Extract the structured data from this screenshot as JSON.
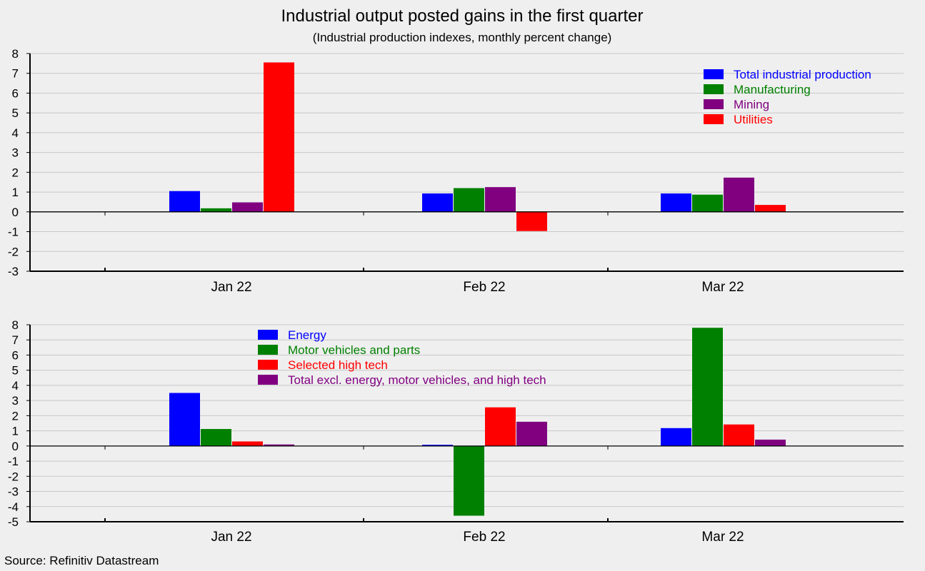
{
  "header": {
    "title": "Industrial output posted gains in the first quarter",
    "subtitle": "(Industrial production indexes, monthly percent change)"
  },
  "source": "Source: Refinitiv Datastream",
  "chart_data": [
    {
      "type": "bar",
      "categories": [
        "Jan 22",
        "Feb 22",
        "Mar 22"
      ],
      "ylim": [
        -3,
        8
      ],
      "yticks": [
        -3,
        -2,
        -1,
        0,
        1,
        2,
        3,
        4,
        5,
        6,
        7,
        8
      ],
      "grid": true,
      "legend_position": "top-right",
      "series": [
        {
          "name": "Total industrial production",
          "color": "#0000ff",
          "values": [
            1.05,
            0.93,
            0.93
          ]
        },
        {
          "name": "Manufacturing",
          "color": "#008000",
          "values": [
            0.18,
            1.2,
            0.87
          ]
        },
        {
          "name": "Mining",
          "color": "#800080",
          "values": [
            0.48,
            1.25,
            1.73
          ]
        },
        {
          "name": "Utilities",
          "color": "#ff0000",
          "values": [
            7.55,
            -0.97,
            0.35
          ]
        }
      ]
    },
    {
      "type": "bar",
      "categories": [
        "Jan 22",
        "Feb 22",
        "Mar 22"
      ],
      "ylim": [
        -5,
        8
      ],
      "yticks": [
        -5,
        -4,
        -3,
        -2,
        -1,
        0,
        1,
        2,
        3,
        4,
        5,
        6,
        7,
        8
      ],
      "grid": true,
      "legend_position": "top-center",
      "series": [
        {
          "name": "Energy",
          "color": "#0000ff",
          "values": [
            3.5,
            0.08,
            1.18
          ]
        },
        {
          "name": "Motor vehicles and parts",
          "color": "#008000",
          "values": [
            1.12,
            -4.6,
            7.8
          ]
        },
        {
          "name": "Selected high tech",
          "color": "#ff0000",
          "values": [
            0.3,
            2.55,
            1.42
          ]
        },
        {
          "name": "Total excl. energy, motor vehicles, and high tech",
          "color": "#800080",
          "values": [
            0.1,
            1.6,
            0.42
          ]
        }
      ]
    }
  ]
}
